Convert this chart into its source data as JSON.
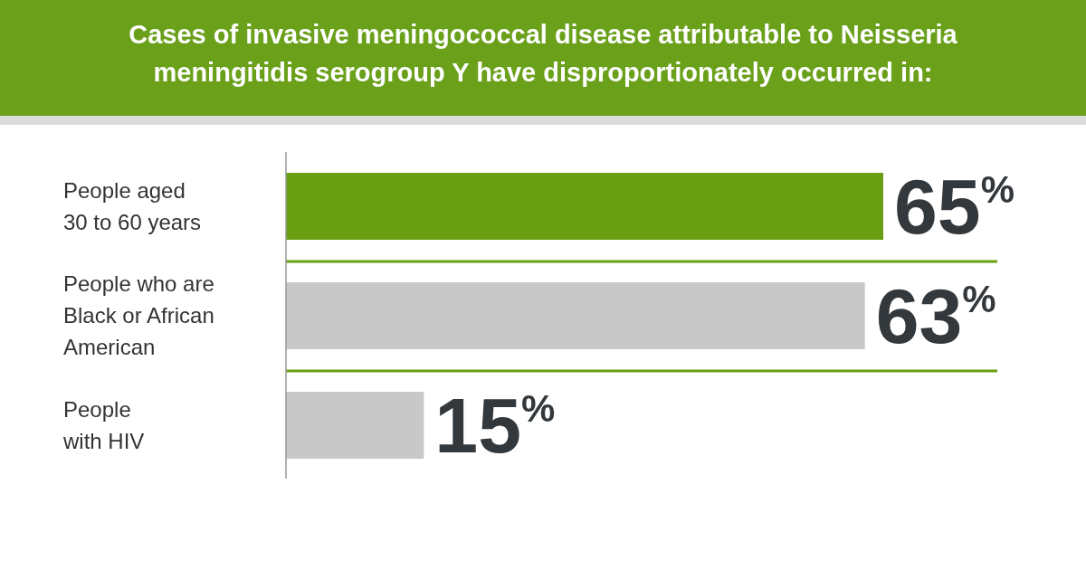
{
  "chart_data": {
    "type": "bar",
    "orientation": "horizontal",
    "title": "Cases of invasive meningococcal disease attributable to Neisseria meningitidis serogroup Y have disproportionately occurred in:",
    "categories": [
      "People aged\n30 to 60 years",
      "People who are\nBlack or African\nAmerican",
      "People\nwith HIV"
    ],
    "values": [
      65,
      63,
      15
    ],
    "colors": [
      "#6a9e12",
      "#c8c8c8",
      "#c8c8c8"
    ],
    "value_labels": [
      "65$^{%}$",
      "63$^{%}$",
      "15$^{%}$"
    ]
  }
}
